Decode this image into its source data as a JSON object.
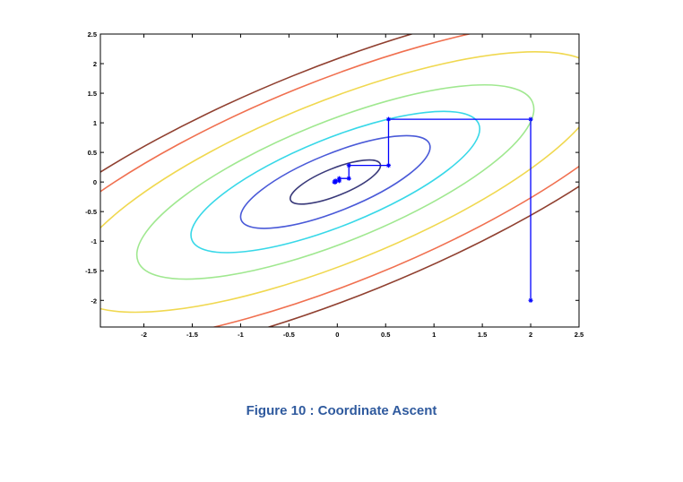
{
  "caption": "Figure 10 : Coordinate Ascent",
  "chart_data": {
    "type": "line",
    "title": "",
    "xlabel": "",
    "ylabel": "",
    "xlim": [
      -2.45,
      2.5
    ],
    "ylim": [
      -2.45,
      2.5
    ],
    "x_ticks": [
      -2,
      -1.5,
      -1,
      -0.5,
      0,
      0.5,
      1,
      1.5,
      2,
      2.5
    ],
    "x_tick_labels": [
      "-2",
      "-1.5",
      "-1",
      "-0.5",
      "0",
      "0.5",
      "1",
      "1.5",
      "2",
      "2.5"
    ],
    "y_ticks": [
      -2,
      -1.5,
      -1,
      -0.5,
      0,
      0.5,
      1,
      1.5,
      2,
      2.5
    ],
    "y_tick_labels": [
      "-2",
      "-1.5",
      "-1",
      "-0.5",
      "0",
      "0.5",
      "1",
      "1.5",
      "2",
      "2.5"
    ],
    "grid": false,
    "contours": {
      "center": [
        -0.02,
        0.0
      ],
      "angle_deg": 22,
      "aspect_ratio": 0.46,
      "levels": [
        {
          "semi_major": 0.5,
          "color": "#3a3a7a"
        },
        {
          "semi_major": 1.05,
          "color": "#4a5ad8"
        },
        {
          "semi_major": 1.6,
          "color": "#38d8e8"
        },
        {
          "semi_major": 2.2,
          "color": "#a0e890"
        },
        {
          "semi_major": 2.95,
          "color": "#f0d850"
        },
        {
          "semi_major": 3.7,
          "color": "#f07050"
        },
        {
          "semi_major": 4.2,
          "color": "#904030"
        }
      ]
    },
    "series": [
      {
        "color": "#0000ff",
        "marker": "star",
        "x": [
          2,
          2,
          0.53,
          0.53,
          0.12,
          0.12,
          0.02,
          0.02,
          -0.02,
          -0.02,
          -0.03
        ],
        "y": [
          -2,
          1.06,
          1.06,
          0.28,
          0.28,
          0.06,
          0.06,
          0.02,
          0.02,
          0.0,
          0.0
        ]
      }
    ]
  }
}
